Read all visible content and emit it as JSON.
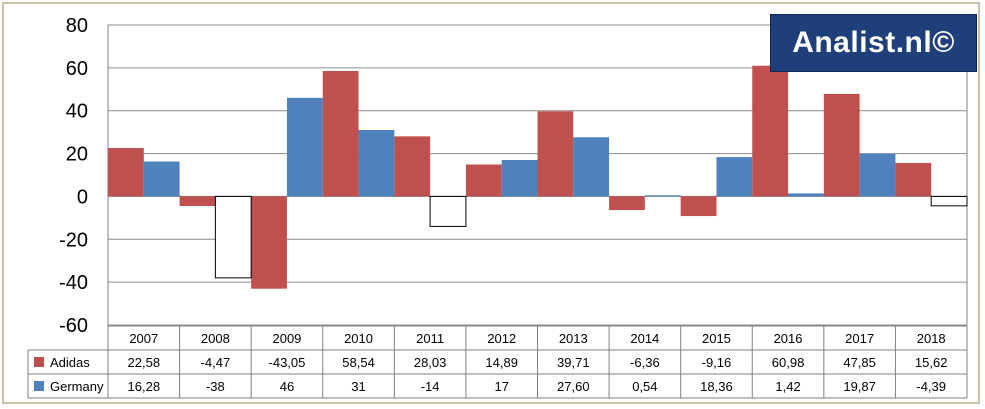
{
  "logo": {
    "text": "Analist.nl©",
    "bg": "#1f3f7a"
  },
  "chart_data": {
    "type": "bar",
    "categories": [
      "2007",
      "2008",
      "2009",
      "2010",
      "2011",
      "2012",
      "2013",
      "2014",
      "2015",
      "2016",
      "2017",
      "2018"
    ],
    "series": [
      {
        "name": "Adidas",
        "color": "#c0504d",
        "negative_color": "#c0504d",
        "values": [
          22.58,
          -4.47,
          -43.05,
          58.54,
          28.03,
          14.89,
          39.71,
          -6.36,
          -9.16,
          60.98,
          47.85,
          15.62
        ],
        "labels": [
          "22,58",
          "-4,47",
          "-43,05",
          "58,54",
          "28,03",
          "14,89",
          "39,71",
          "-6,36",
          "-9,16",
          "60,98",
          "47,85",
          "15,62"
        ]
      },
      {
        "name": "Germany",
        "color": "#4f81bd",
        "negative_color": "#ffffff",
        "values": [
          16.28,
          -38,
          46,
          31,
          -14,
          17,
          27.6,
          0.54,
          18.36,
          1.42,
          19.87,
          -4.39
        ],
        "labels": [
          "16,28",
          "-38",
          "46",
          "31",
          "-14",
          "17",
          "27,60",
          "0,54",
          "18,36",
          "1,42",
          "19,87",
          "-4,39"
        ]
      }
    ],
    "yticks": [
      "80",
      "60",
      "40",
      "20",
      "0",
      "-20",
      "-40",
      "-60"
    ],
    "ylim": [
      -60,
      80
    ],
    "grid": true,
    "legend": "data-table"
  }
}
